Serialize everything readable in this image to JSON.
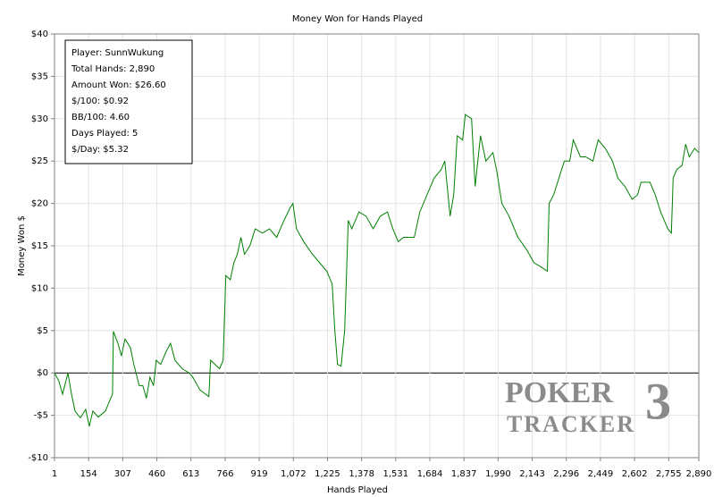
{
  "chart_data": {
    "type": "line",
    "title": "Money Won for Hands Played",
    "xlabel": "Hands Played",
    "ylabel": "Money Won $",
    "info_box": [
      "Player: SunnWukung",
      "Total Hands: 2,890",
      "Amount Won: $26.60",
      "$/100: $0.92",
      "BB/100: 4.60",
      "Days Played: 5",
      "$/Day: $5.32"
    ],
    "watermark": [
      "POKER",
      "TRACKER",
      "3"
    ],
    "color": "#008000",
    "grid": true,
    "xlim": [
      1,
      2890
    ],
    "ylim": [
      -10,
      40
    ],
    "xticks": [
      1,
      154,
      307,
      460,
      613,
      766,
      919,
      {
        "value": 1072,
        "label": "1,072"
      },
      {
        "value": 1225,
        "label": "1,225"
      },
      {
        "value": 1378,
        "label": "1,378"
      },
      {
        "value": 1531,
        "label": "1,531"
      },
      {
        "value": 1684,
        "label": "1,684"
      },
      {
        "value": 1837,
        "label": "1,837"
      },
      {
        "value": 1990,
        "label": "1,990"
      },
      {
        "value": 2143,
        "label": "2,143"
      },
      {
        "value": 2296,
        "label": "2,296"
      },
      {
        "value": 2449,
        "label": "2,449"
      },
      {
        "value": 2602,
        "label": "2,602"
      },
      {
        "value": 2755,
        "label": "2,755"
      },
      {
        "value": 2890,
        "label": "2,890"
      }
    ],
    "yticks": [
      {
        "value": -10,
        "label": "-$10"
      },
      {
        "value": -5,
        "label": "-$5"
      },
      {
        "value": 0,
        "label": "$0"
      },
      {
        "value": 5,
        "label": "$5"
      },
      {
        "value": 10,
        "label": "$10"
      },
      {
        "value": 15,
        "label": "$15"
      },
      {
        "value": 20,
        "label": "$20"
      },
      {
        "value": 25,
        "label": "$25"
      },
      {
        "value": 30,
        "label": "$30"
      },
      {
        "value": 35,
        "label": "$35"
      },
      {
        "value": 40,
        "label": "$40"
      }
    ],
    "x": [
      1,
      21,
      37,
      61,
      77,
      93,
      117,
      141,
      157,
      173,
      197,
      229,
      253,
      261,
      265,
      285,
      301,
      317,
      341,
      357,
      381,
      397,
      413,
      429,
      445,
      457,
      477,
      501,
      521,
      541,
      573,
      605,
      621,
      653,
      693,
      701,
      721,
      741,
      757,
      769,
      789,
      805,
      821,
      837,
      853,
      877,
      901,
      933,
      965,
      997,
      1030,
      1058,
      1070,
      1086,
      1118,
      1158,
      1190,
      1222,
      1246,
      1258,
      1270,
      1286,
      1302,
      1318,
      1334,
      1366,
      1398,
      1430,
      1462,
      1494,
      1518,
      1542,
      1566,
      1614,
      1639,
      1671,
      1703,
      1735,
      1751,
      1775,
      1791,
      1807,
      1831,
      1843,
      1871,
      1887,
      1911,
      1935,
      1967,
      1983,
      2007,
      2039,
      2079,
      2119,
      2151,
      2183,
      2211,
      2219,
      2239,
      2263,
      2287,
      2311,
      2327,
      2359,
      2383,
      2415,
      2439,
      2471,
      2503,
      2527,
      2559,
      2591,
      2615,
      2631,
      2671,
      2695,
      2719,
      2751,
      2767,
      2775,
      2791,
      2815,
      2831,
      2847,
      2871,
      2890
    ],
    "values": [
      0,
      -1,
      -2.5,
      0,
      -2.5,
      -4.5,
      -5.3,
      -4.3,
      -6.3,
      -4.5,
      -5.2,
      -4.5,
      -3,
      -2.5,
      4.9,
      3.5,
      2,
      4,
      3,
      1,
      -1.5,
      -1.5,
      -3,
      -0.5,
      -1.5,
      1.5,
      1,
      2.5,
      3.5,
      1.5,
      0.5,
      0,
      -0.5,
      -2,
      -2.8,
      1.5,
      1,
      0.5,
      1.5,
      11.5,
      11,
      13,
      14,
      16,
      14,
      15,
      17,
      16.5,
      17,
      16,
      18,
      19.5,
      20,
      17,
      15.5,
      14,
      13,
      12,
      10.5,
      5,
      1,
      0.8,
      5,
      18,
      17,
      19,
      18.5,
      17,
      18.5,
      19,
      17,
      15.5,
      16,
      16,
      19,
      21,
      23,
      24,
      25,
      18.5,
      21,
      28,
      27.5,
      30.5,
      30,
      22,
      28,
      25,
      26,
      24,
      20,
      18.5,
      16,
      14.5,
      13,
      12.5,
      12,
      20,
      21,
      23,
      25,
      25,
      27.5,
      25.5,
      25.5,
      25,
      27.5,
      26.5,
      25,
      23,
      22,
      20.5,
      21,
      22.5,
      22.5,
      21,
      19,
      17,
      16.5,
      23,
      24,
      24.5,
      27,
      25.5,
      26.5,
      26
    ]
  }
}
